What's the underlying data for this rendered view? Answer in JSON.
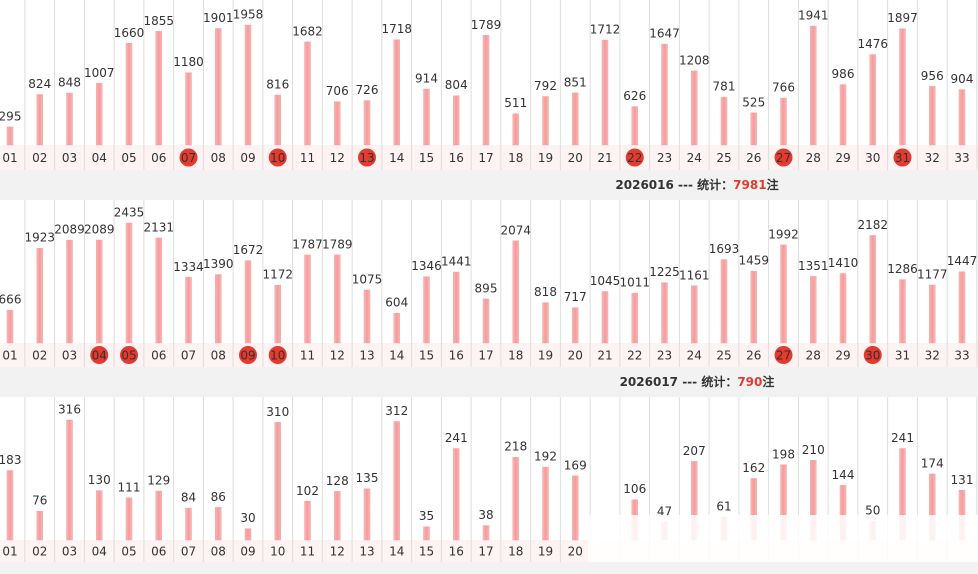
{
  "chart_data": [
    {
      "type": "bar",
      "categories": [
        "01",
        "02",
        "03",
        "04",
        "05",
        "06",
        "07",
        "08",
        "09",
        "10",
        "11",
        "12",
        "13",
        "14",
        "15",
        "16",
        "17",
        "18",
        "19",
        "20",
        "21",
        "22",
        "23",
        "24",
        "25",
        "26",
        "27",
        "28",
        "29",
        "30",
        "31",
        "32",
        "33"
      ],
      "values": [
        295,
        824,
        848,
        1007,
        1660,
        1855,
        1180,
        1901,
        1958,
        816,
        1682,
        706,
        726,
        1718,
        914,
        804,
        1789,
        511,
        792,
        851,
        1712,
        626,
        1647,
        1208,
        781,
        525,
        766,
        1941,
        986,
        1476,
        1897,
        956,
        904
      ],
      "color": "#f7a4a4",
      "highlight_color": "#e53a2f",
      "highlighted": [
        "07",
        "10",
        "13",
        "22",
        "27",
        "31"
      ]
    },
    {
      "type": "bar",
      "categories": [
        "01",
        "02",
        "03",
        "04",
        "05",
        "06",
        "07",
        "08",
        "09",
        "10",
        "11",
        "12",
        "13",
        "14",
        "15",
        "16",
        "17",
        "18",
        "19",
        "20",
        "21",
        "22",
        "23",
        "24",
        "25",
        "26",
        "27",
        "28",
        "29",
        "30",
        "31",
        "32",
        "33"
      ],
      "values": [
        666,
        1923,
        2089,
        2089,
        2435,
        2131,
        1334,
        1390,
        1672,
        1172,
        1787,
        1789,
        1075,
        604,
        1346,
        1441,
        895,
        2074,
        818,
        717,
        1045,
        1011,
        1225,
        1161,
        1693,
        1459,
        1992,
        1351,
        1410,
        2182,
        1286,
        1177,
        1447
      ],
      "color": "#f7a4a4",
      "highlight_color": "#e53a2f",
      "highlighted": [
        "04",
        "05",
        "09",
        "10",
        "27",
        "30"
      ]
    },
    {
      "type": "bar",
      "categories": [
        "01",
        "02",
        "03",
        "04",
        "05",
        "06",
        "07",
        "08",
        "09",
        "10",
        "11",
        "12",
        "13",
        "14",
        "15",
        "16",
        "17",
        "18",
        "19",
        "20",
        null,
        null,
        null,
        null,
        null,
        null,
        null,
        null,
        null,
        null,
        null,
        null,
        null
      ],
      "values": [
        183,
        76,
        316,
        130,
        111,
        129,
        84,
        86,
        30,
        310,
        102,
        128,
        135,
        312,
        35,
        241,
        38,
        218,
        192,
        169,
        null,
        106,
        47,
        207,
        61,
        162,
        198,
        210,
        144,
        50,
        241,
        174,
        131
      ],
      "color": "#f7a4a4",
      "highlight_color": "#e53a2f",
      "highlighted": []
    }
  ],
  "summaries": [
    {
      "label": "2026016 --- 统计：",
      "count": 7981,
      "unit": "注"
    },
    {
      "label": "2026017 --- 统计：",
      "count": 790,
      "unit": "注"
    }
  ]
}
